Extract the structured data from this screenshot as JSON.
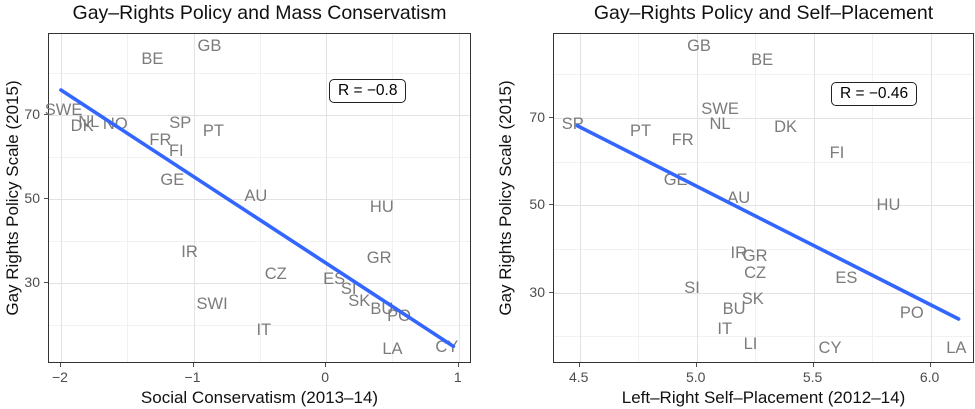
{
  "style": {
    "trend_color": "#3366FF",
    "label_color": "#7b7b7b",
    "grid_major": "#e2e2e2",
    "grid_minor": "#f1f1f1",
    "panel_border": "#333333",
    "axis_text": "#4d4d4d",
    "title_color": "#111111"
  },
  "chart_data": [
    {
      "type": "scatter",
      "title": "Gay–Rights Policy and Mass Conservatism",
      "xlabel": "Social Conservatism (2013–14)",
      "ylabel": "Gay Rights Policy Scale (2015)",
      "annotation": "R = −0.8",
      "legend": "none",
      "grid": "on",
      "xlim": [
        -2.09,
        1.1
      ],
      "ylim": [
        10.8,
        89.2
      ],
      "x_ticks": [
        {
          "v": -2,
          "label": "−2"
        },
        {
          "v": -1,
          "label": "−1"
        },
        {
          "v": 0,
          "label": "0"
        },
        {
          "v": 1,
          "label": "1"
        }
      ],
      "x_minor": [
        -1.5,
        -0.5,
        0.5
      ],
      "y_ticks": [
        {
          "v": 70,
          "label": "70"
        },
        {
          "v": 50,
          "label": "50"
        },
        {
          "v": 30,
          "label": "30"
        }
      ],
      "y_minor": [
        80,
        60,
        40,
        20
      ],
      "points": [
        {
          "label": "SWE",
          "x": -1.98,
          "y": 71.2
        },
        {
          "label": "NL",
          "x": -1.79,
          "y": 68.2
        },
        {
          "label": "DK",
          "x": -1.84,
          "y": 67.3
        },
        {
          "label": "NO",
          "x": -1.59,
          "y": 67.8
        },
        {
          "label": "SP",
          "x": -1.1,
          "y": 68.1
        },
        {
          "label": "PT",
          "x": -0.85,
          "y": 66.2
        },
        {
          "label": "FR",
          "x": -1.25,
          "y": 64.1
        },
        {
          "label": "FI",
          "x": -1.13,
          "y": 61.5
        },
        {
          "label": "GE",
          "x": -1.16,
          "y": 54.6
        },
        {
          "label": "BE",
          "x": -1.31,
          "y": 83.3
        },
        {
          "label": "GB",
          "x": -0.88,
          "y": 86.4
        },
        {
          "label": "AU",
          "x": -0.53,
          "y": 50.6
        },
        {
          "label": "HU",
          "x": 0.42,
          "y": 48.0
        },
        {
          "label": "IR",
          "x": -1.03,
          "y": 37.5
        },
        {
          "label": "GR",
          "x": 0.4,
          "y": 36.1
        },
        {
          "label": "CZ",
          "x": -0.38,
          "y": 32.1
        },
        {
          "label": "ES",
          "x": 0.06,
          "y": 30.9
        },
        {
          "label": "SI",
          "x": 0.17,
          "y": 28.5
        },
        {
          "label": "SK",
          "x": 0.25,
          "y": 25.7
        },
        {
          "label": "BU",
          "x": 0.42,
          "y": 23.8
        },
        {
          "label": "PO",
          "x": 0.55,
          "y": 22.1
        },
        {
          "label": "SWI",
          "x": -0.86,
          "y": 25.0
        },
        {
          "label": "IT",
          "x": -0.47,
          "y": 18.8
        },
        {
          "label": "LA",
          "x": 0.5,
          "y": 14.3
        },
        {
          "label": "CY",
          "x": 0.91,
          "y": 14.8
        }
      ],
      "trend": {
        "x1": -2.0,
        "y1": 75.9,
        "x2": 0.96,
        "y2": 15.0
      }
    },
    {
      "type": "scatter",
      "title": "Gay–Rights Policy and Self–Placement",
      "xlabel": "Left–Right Self–Placement (2012–14)",
      "ylabel": "Gay Rights Policy Scale (2015)",
      "annotation": "R = −0.46",
      "legend": "none",
      "grid": "on",
      "xlim": [
        4.39,
        6.19
      ],
      "ylim": [
        13.7,
        89.2
      ],
      "x_ticks": [
        {
          "v": 4.5,
          "label": "4.5"
        },
        {
          "v": 5.0,
          "label": "5.0"
        },
        {
          "v": 5.5,
          "label": "5.5"
        },
        {
          "v": 6.0,
          "label": "6.0"
        }
      ],
      "x_minor": [
        4.75,
        5.25,
        5.75
      ],
      "y_ticks": [
        {
          "v": 70,
          "label": "70"
        },
        {
          "v": 50,
          "label": "50"
        },
        {
          "v": 30,
          "label": "30"
        }
      ],
      "y_minor": [
        80,
        60,
        40,
        20
      ],
      "points": [
        {
          "label": "SP",
          "x": 4.47,
          "y": 68.6
        },
        {
          "label": "PT",
          "x": 4.76,
          "y": 67.0
        },
        {
          "label": "FR",
          "x": 4.94,
          "y": 65.0
        },
        {
          "label": "SWE",
          "x": 5.1,
          "y": 72.1
        },
        {
          "label": "NL",
          "x": 5.1,
          "y": 68.6
        },
        {
          "label": "DK",
          "x": 5.38,
          "y": 67.9
        },
        {
          "label": "GB",
          "x": 5.01,
          "y": 86.5
        },
        {
          "label": "BE",
          "x": 5.28,
          "y": 83.3
        },
        {
          "label": "FI",
          "x": 5.6,
          "y": 62.0
        },
        {
          "label": "GE",
          "x": 4.91,
          "y": 55.8
        },
        {
          "label": "AU",
          "x": 5.18,
          "y": 51.7
        },
        {
          "label": "HU",
          "x": 5.82,
          "y": 50.1
        },
        {
          "label": "IR",
          "x": 5.18,
          "y": 39.1
        },
        {
          "label": "GR",
          "x": 5.25,
          "y": 38.4
        },
        {
          "label": "CZ",
          "x": 5.25,
          "y": 34.5
        },
        {
          "label": "SI",
          "x": 4.98,
          "y": 31.1
        },
        {
          "label": "SK",
          "x": 5.24,
          "y": 28.6
        },
        {
          "label": "BU",
          "x": 5.16,
          "y": 26.3
        },
        {
          "label": "IT",
          "x": 5.12,
          "y": 21.7
        },
        {
          "label": "LI",
          "x": 5.23,
          "y": 18.3
        },
        {
          "label": "ES",
          "x": 5.64,
          "y": 33.4
        },
        {
          "label": "PO",
          "x": 5.92,
          "y": 25.4
        },
        {
          "label": "CY",
          "x": 5.57,
          "y": 17.4
        },
        {
          "label": "LA",
          "x": 6.11,
          "y": 17.4
        }
      ],
      "trend": {
        "x1": 4.49,
        "y1": 68.2,
        "x2": 6.12,
        "y2": 24.0
      }
    }
  ]
}
